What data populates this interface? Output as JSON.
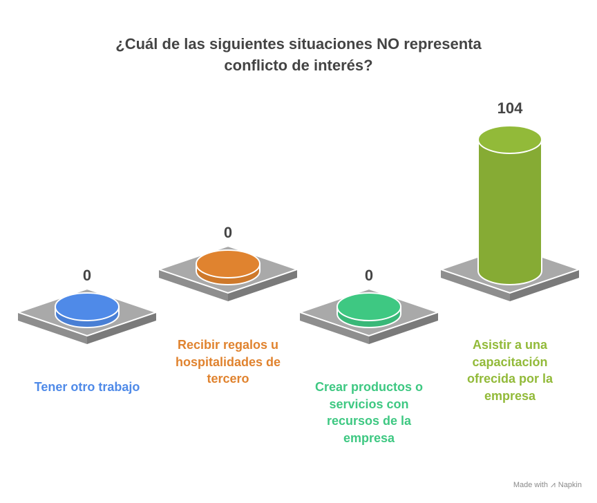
{
  "title_line1": "¿Cuál de las siguientes situaciones NO representa",
  "title_line2": "conflicto de interés?",
  "chart_data": {
    "type": "bar",
    "title": "¿Cuál de las siguientes situaciones NO representa conflicto de interés?",
    "categories": [
      "Tener otro trabajo",
      "Recibir regalos u hospitalidades de tercero",
      "Crear productos o servicios con recursos de la empresa",
      "Asistir a una capacitación ofrecida por la empresa"
    ],
    "values": [
      0,
      0,
      0,
      104
    ],
    "colors": [
      "#4f8ae8",
      "#e0832f",
      "#3ec882",
      "#92ba39"
    ],
    "label_lines": [
      [
        "Tener otro trabajo"
      ],
      [
        "Recibir regalos u",
        "hospitalidades de",
        "tercero"
      ],
      [
        "Crear productos o",
        "servicios con",
        "recursos de la",
        "empresa"
      ],
      [
        "Asistir a una",
        "capacitación",
        "ofrecida por la",
        "empresa"
      ]
    ],
    "value_labels": [
      "0",
      "0",
      "0",
      "104"
    ],
    "xlabel": "",
    "ylabel": "",
    "ylim": [
      0,
      104
    ],
    "grid": false,
    "legend": "none"
  },
  "brand": {
    "made_with": "Made with",
    "name": "Napkin",
    "icon": "napkin-logo-icon"
  }
}
